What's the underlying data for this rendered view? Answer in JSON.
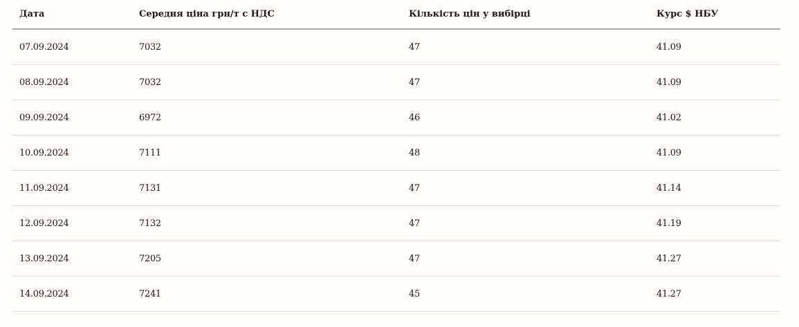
{
  "table": {
    "headers": [
      "Дата",
      "Середня ціна грн/т с НДС",
      "Кількість цін у вибірці",
      "Курс $ НБУ"
    ],
    "rows": [
      [
        "07.09.2024",
        "7032",
        "47",
        "41.09"
      ],
      [
        "08.09.2024",
        "7032",
        "47",
        "41.09"
      ],
      [
        "09.09.2024",
        "6972",
        "46",
        "41.02"
      ],
      [
        "10.09.2024",
        "7111",
        "48",
        "41.09"
      ],
      [
        "11.09.2024",
        "7131",
        "47",
        "41.14"
      ],
      [
        "12.09.2024",
        "7132",
        "47",
        "41.19"
      ],
      [
        "13.09.2024",
        "7205",
        "47",
        "41.27"
      ],
      [
        "14.09.2024",
        "7241",
        "45",
        "41.27"
      ]
    ]
  }
}
